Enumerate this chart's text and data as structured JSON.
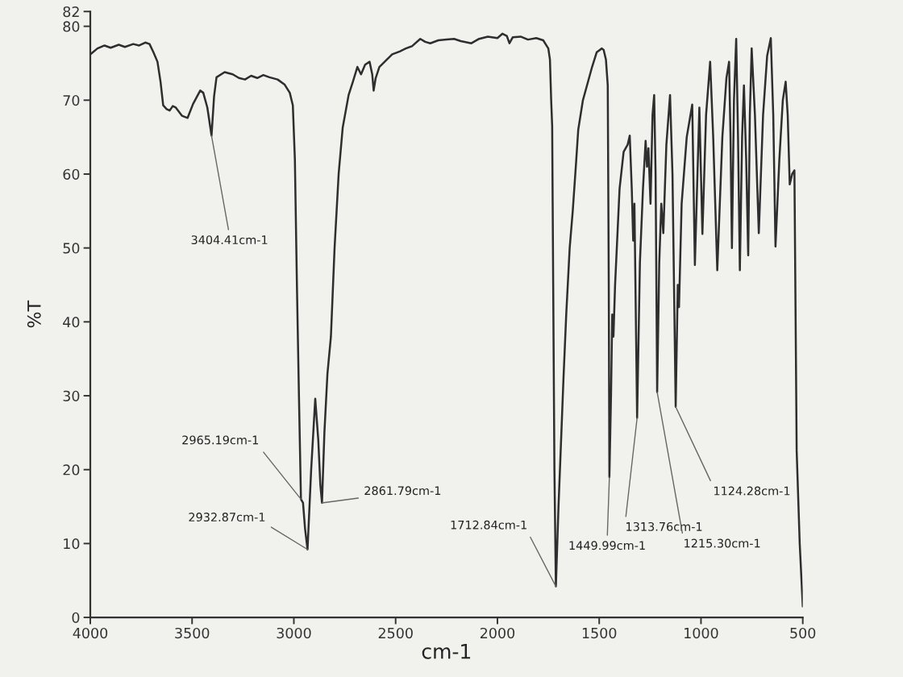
{
  "chart_data": {
    "type": "line",
    "xlabel": "cm-1",
    "ylabel": "%T",
    "color": "#2e2e2e",
    "x": [
      4000,
      3965,
      3930,
      3900,
      3860,
      3830,
      3789,
      3760,
      3730,
      3709,
      3690,
      3670,
      3655,
      3642,
      3625,
      3610,
      3595,
      3580,
      3550,
      3522,
      3495,
      3460,
      3445,
      3425,
      3404.41,
      3392,
      3380,
      3340,
      3300,
      3270,
      3240,
      3210,
      3180,
      3150,
      3120,
      3080,
      3045,
      3020,
      3005,
      2995,
      2985,
      2975,
      2965.19,
      2955,
      2945,
      2932.87,
      2915,
      2895,
      2880,
      2870,
      2861.79,
      2850,
      2835,
      2818,
      2800,
      2780,
      2760,
      2731,
      2710,
      2688,
      2670,
      2650,
      2628,
      2615,
      2608,
      2598,
      2580,
      2550,
      2517,
      2480,
      2450,
      2420,
      2379,
      2355,
      2330,
      2290,
      2250,
      2213,
      2180,
      2128,
      2090,
      2047,
      2000,
      1975,
      1954,
      1941,
      1925,
      1886,
      1850,
      1809,
      1775,
      1750,
      1742,
      1736,
      1731,
      1726,
      1720,
      1712.84,
      1700,
      1690,
      1676,
      1662,
      1645,
      1630,
      1615,
      1603,
      1580,
      1560,
      1535,
      1512,
      1487,
      1478,
      1467,
      1458,
      1453,
      1449.99,
      1442,
      1436,
      1430,
      1422,
      1400,
      1380,
      1360,
      1350,
      1340,
      1333,
      1327,
      1313.76,
      1300,
      1285,
      1272,
      1265,
      1258,
      1248,
      1238,
      1230,
      1223,
      1215.3,
      1205,
      1195,
      1185,
      1170,
      1152,
      1140,
      1124.28,
      1114,
      1108,
      1095,
      1070,
      1043,
      1030,
      1008,
      993,
      975,
      955,
      940,
      920,
      895,
      875,
      862,
      855,
      848,
      838,
      827,
      818,
      809,
      798,
      789,
      778,
      768,
      760,
      751,
      735,
      716,
      695,
      675,
      657,
      645,
      634,
      615,
      598,
      584,
      574,
      564,
      552,
      541,
      530,
      515,
      500
    ],
    "values": [
      76.2,
      77.0,
      77.4,
      77.1,
      77.5,
      77.2,
      77.6,
      77.4,
      77.8,
      77.6,
      76.5,
      75.2,
      72.5,
      69.3,
      68.8,
      68.6,
      69.2,
      69.0,
      67.9,
      67.6,
      69.5,
      71.3,
      71.0,
      69.0,
      65.2,
      70.5,
      73.1,
      73.8,
      73.5,
      73.0,
      72.8,
      73.3,
      73.0,
      73.4,
      73.1,
      72.8,
      72.1,
      71.0,
      69.3,
      62,
      45,
      30,
      16,
      15.5,
      12,
      9.2,
      20,
      29.6,
      24,
      18,
      15.5,
      25,
      33,
      38,
      50,
      60,
      66.3,
      70.7,
      72.5,
      74.5,
      73.5,
      74.8,
      75.2,
      73.5,
      71.3,
      73.0,
      74.5,
      75.3,
      76.2,
      76.6,
      77.0,
      77.3,
      78.3,
      77.9,
      77.7,
      78.1,
      78.2,
      78.3,
      78.0,
      77.7,
      78.3,
      78.6,
      78.4,
      79.0,
      78.7,
      77.7,
      78.5,
      78.6,
      78.2,
      78.4,
      78.1,
      77.0,
      75.5,
      70.0,
      66.5,
      45,
      20,
      4.2,
      15,
      22,
      32,
      41,
      50,
      55,
      61,
      66,
      70,
      72,
      74.5,
      76.5,
      77.0,
      76.8,
      75.5,
      72,
      45,
      19.0,
      30,
      41,
      38,
      45,
      58,
      63,
      64,
      65.2,
      58,
      51,
      56,
      27,
      48,
      58,
      64.5,
      61,
      63.5,
      56,
      68,
      70.7,
      60,
      30.5,
      48,
      56,
      52,
      64,
      70.7,
      60,
      28.5,
      45,
      42,
      56,
      65,
      69.4,
      47.7,
      69.0,
      51.9,
      68,
      75.2,
      65,
      47.0,
      65,
      73,
      75.2,
      65,
      50.0,
      70,
      78.3,
      65,
      47.0,
      65,
      72.0,
      62,
      49.0,
      68,
      77.0,
      68,
      52.0,
      68,
      76,
      78.4,
      68,
      50.2,
      62,
      70,
      72.5,
      68,
      58.6,
      60,
      60.5,
      22.6,
      10,
      1.5
    ],
    "xlim": [
      4000,
      500
    ],
    "xticks": [
      4000,
      3500,
      3000,
      2500,
      2000,
      1500,
      1000,
      500
    ],
    "ylim": [
      0,
      82
    ],
    "yticks": [
      0,
      10,
      20,
      30,
      40,
      50,
      60,
      70,
      80,
      82
    ],
    "annotations": [
      {
        "text": "3404.41cm-1",
        "x": 3404.41,
        "y": 65.2
      },
      {
        "text": "2965.19cm-1",
        "x": 2965.19,
        "y": 16
      },
      {
        "text": "2932.87cm-1",
        "x": 2932.87,
        "y": 9.2
      },
      {
        "text": "2861.79cm-1",
        "x": 2861.79,
        "y": 15.5
      },
      {
        "text": "1712.84cm-1",
        "x": 1712.84,
        "y": 4.2
      },
      {
        "text": "1449.99cm-1",
        "x": 1449.99,
        "y": 19.0
      },
      {
        "text": "1313.76cm-1",
        "x": 1313.76,
        "y": 27
      },
      {
        "text": "1215.30cm-1",
        "x": 1215.3,
        "y": 30.5
      },
      {
        "text": "1124.28cm-1",
        "x": 1124.28,
        "y": 28.5
      }
    ]
  }
}
